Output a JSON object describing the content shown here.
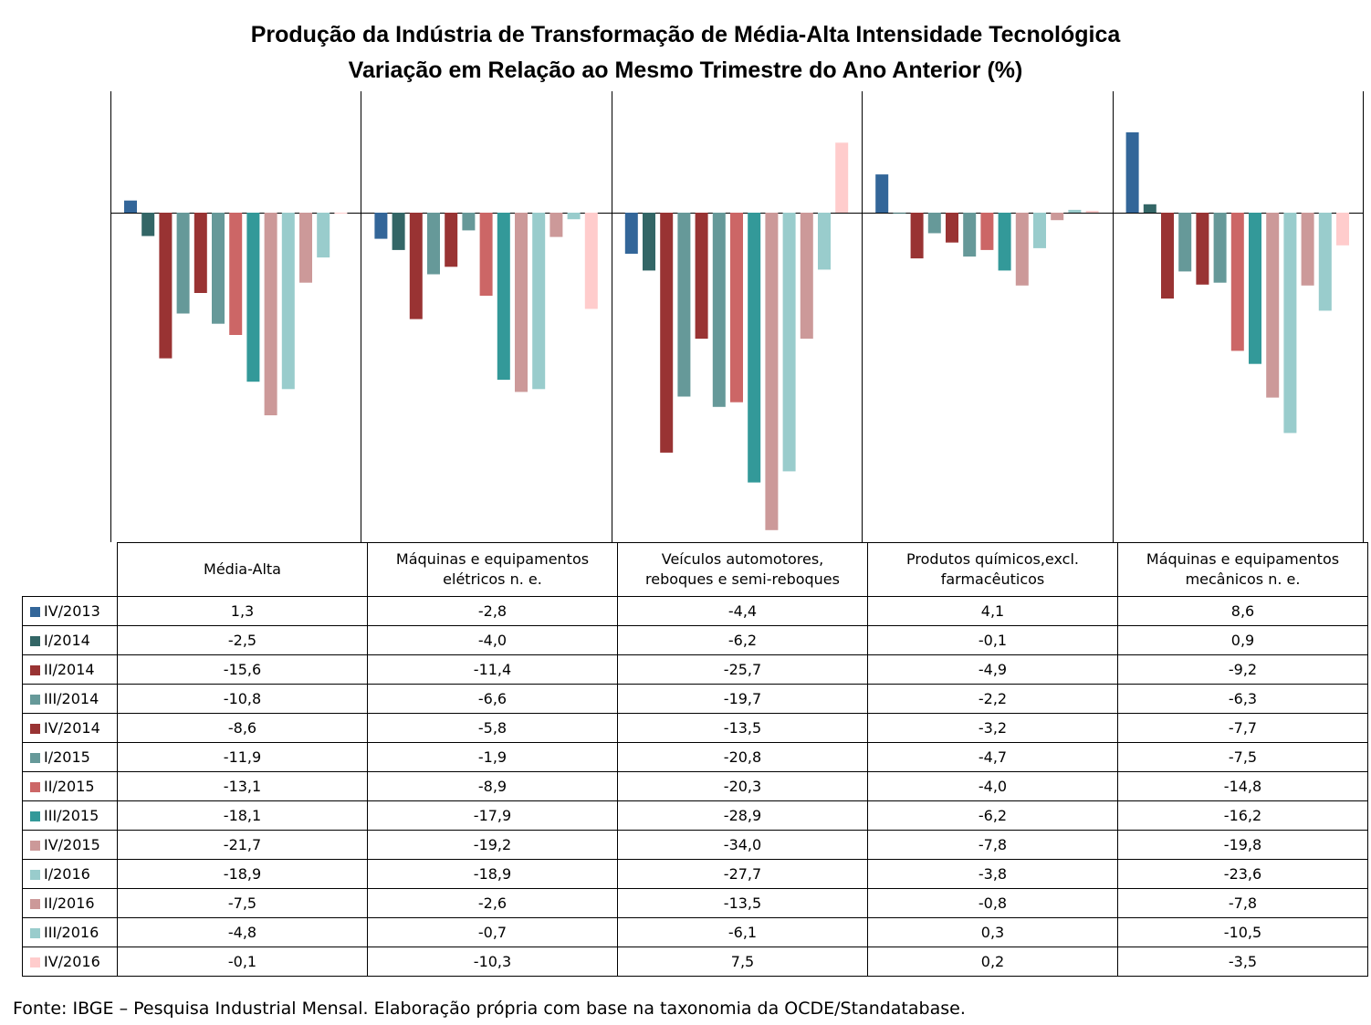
{
  "title": "Produção da Indústria de Transformação de Média-Alta Intensidade Tecnológica",
  "subtitle": "Variação em Relação ao Mesmo Trimestre do Ano Anterior (%)",
  "source": "Fonte: IBGE – Pesquisa Industrial Mensal. Elaboração própria com base na taxonomia da OCDE/Standatabase.",
  "chart_data": {
    "type": "bar",
    "title": "Produção da Indústria de Transformação de Média-Alta Intensidade Tecnológica",
    "subtitle": "Variação em Relação ao Mesmo Trimestre do Ano Anterior (%)",
    "categories": [
      "Média-Alta",
      "Máquinas e equipamentos elétricos n. e.",
      "Veículos automotores, reboques e semi-reboques",
      "Produtos químicos,excl. farmacêuticos",
      "Máquinas e equipamentos mecânicos  n. e."
    ],
    "category_lines": [
      [
        "Média-Alta"
      ],
      [
        "Máquinas e equipamentos",
        "elétricos n. e."
      ],
      [
        "Veículos automotores,",
        "reboques e semi-reboques"
      ],
      [
        "Produtos químicos,excl.",
        "farmacêuticos"
      ],
      [
        "Máquinas e equipamentos",
        "mecânicos  n. e."
      ]
    ],
    "ylim": [
      -36,
      10
    ],
    "grid": false,
    "legend": "left, inside data table",
    "series": [
      {
        "name": "IV/2013",
        "color": "#336699",
        "values": [
          1.3,
          -2.8,
          -4.4,
          4.1,
          8.6
        ],
        "labels": [
          "1,3",
          "-2,8",
          "-4,4",
          "4,1",
          "8,6"
        ]
      },
      {
        "name": "I/2014",
        "color": "#336666",
        "values": [
          -2.5,
          -4.0,
          -6.2,
          -0.1,
          0.9
        ],
        "labels": [
          "-2,5",
          "-4,0",
          "-6,2",
          "-0,1",
          "0,9"
        ]
      },
      {
        "name": "II/2014",
        "color": "#993333",
        "values": [
          -15.6,
          -11.4,
          -25.7,
          -4.9,
          -9.2
        ],
        "labels": [
          "-15,6",
          "-11,4",
          "-25,7",
          "-4,9",
          "-9,2"
        ]
      },
      {
        "name": "III/2014",
        "color": "#669999",
        "values": [
          -10.8,
          -6.6,
          -19.7,
          -2.2,
          -6.3
        ],
        "labels": [
          "-10,8",
          "-6,6",
          "-19,7",
          "-2,2",
          "-6,3"
        ]
      },
      {
        "name": "IV/2014",
        "color": "#993333",
        "values": [
          -8.6,
          -5.8,
          -13.5,
          -3.2,
          -7.7
        ],
        "labels": [
          "-8,6",
          "-5,8",
          "-13,5",
          "-3,2",
          "-7,7"
        ]
      },
      {
        "name": "I/2015",
        "color": "#669999",
        "values": [
          -11.9,
          -1.9,
          -20.8,
          -4.7,
          -7.5
        ],
        "labels": [
          "-11,9",
          "-1,9",
          "-20,8",
          "-4,7",
          "-7,5"
        ]
      },
      {
        "name": "II/2015",
        "color": "#cc6666",
        "values": [
          -13.1,
          -8.9,
          -20.3,
          -4.0,
          -14.8
        ],
        "labels": [
          "-13,1",
          "-8,9",
          "-20,3",
          "-4,0",
          "-14,8"
        ]
      },
      {
        "name": "III/2015",
        "color": "#339999",
        "values": [
          -18.1,
          -17.9,
          -28.9,
          -6.2,
          -16.2
        ],
        "labels": [
          "-18,1",
          "-17,9",
          "-28,9",
          "-6,2",
          "-16,2"
        ]
      },
      {
        "name": "IV/2015",
        "color": "#cc9999",
        "values": [
          -21.7,
          -19.2,
          -34.0,
          -7.8,
          -19.8
        ],
        "labels": [
          "-21,7",
          "-19,2",
          "-34,0",
          "-7,8",
          "-19,8"
        ]
      },
      {
        "name": "I/2016",
        "color": "#99cccc",
        "values": [
          -18.9,
          -18.9,
          -27.7,
          -3.8,
          -23.6
        ],
        "labels": [
          "-18,9",
          "-18,9",
          "-27,7",
          "-3,8",
          "-23,6"
        ]
      },
      {
        "name": "II/2016",
        "color": "#cc9999",
        "values": [
          -7.5,
          -2.6,
          -13.5,
          -0.8,
          -7.8
        ],
        "labels": [
          "-7,5",
          "-2,6",
          "-13,5",
          "-0,8",
          "-7,8"
        ]
      },
      {
        "name": "III/2016",
        "color": "#99cccc",
        "values": [
          -4.8,
          -0.7,
          -6.1,
          0.3,
          -10.5
        ],
        "labels": [
          "-4,8",
          "-0,7",
          "-6,1",
          "0,3",
          "-10,5"
        ]
      },
      {
        "name": "IV/2016",
        "color": "#ffcccc",
        "values": [
          -0.1,
          -10.3,
          7.5,
          0.2,
          -3.5
        ],
        "labels": [
          "-0,1",
          "-10,3",
          "7,5",
          "0,2",
          "-3,5"
        ]
      }
    ]
  }
}
